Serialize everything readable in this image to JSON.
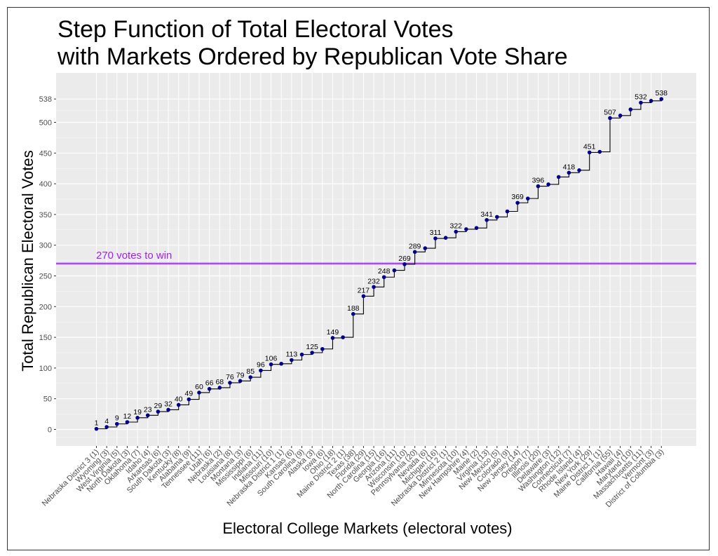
{
  "chart_data": {
    "type": "line",
    "subtype": "step",
    "title_lines": [
      "Step Function of Total Electoral Votes",
      "with Markets Ordered by Republican Vote Share"
    ],
    "xlabel": "Electoral College Markets (electoral votes)",
    "ylabel": "Total Republican Electoral Votes",
    "ylim": [
      -25,
      555
    ],
    "y_ticks": [
      0,
      50,
      100,
      150,
      200,
      250,
      300,
      350,
      400,
      450,
      500,
      538
    ],
    "grid": true,
    "panel_background": "#ebebeb",
    "line_color": "#000000",
    "point_color": "#00008b",
    "reference_line": {
      "y": 270,
      "label": "270 votes to win",
      "color": "#a020f0"
    },
    "categories": [
      "Nebraska District 3 (1)",
      "Wyoming (3)",
      "West Virginia (5)",
      "North Dakota (3)",
      "Oklahoma (7)",
      "Idaho (4)",
      "Arkansas (6)",
      "South Dakota (3)",
      "Kentucky (8)",
      "Alabama (9)",
      "Tennessee (11)",
      "Utah (6)",
      "Nebraska (2)",
      "Louisiana (8)",
      "Montana (3)",
      "Mississippi (6)",
      "Indiana (11)",
      "Missouri (10)",
      "Nebraska District 1 (1)",
      "Kansas (6)",
      "South Carolina (9)",
      "Alaska (3)",
      "Iowa (6)",
      "Ohio (18)",
      "Maine District 2 (1)",
      "Texas (38)",
      "Florida (29)",
      "North Carolina (15)",
      "Georgia (16)",
      "Arizona (11)",
      "Wisconsin (10)",
      "Pennsylvania (20)",
      "Nevada (6)",
      "Michigan (16)",
      "Nebraska District 2 (1)",
      "Minnesota (10)",
      "New Hampshire (4)",
      "Maine (2)",
      "Virginia (13)",
      "New Mexico (5)",
      "Colorado (9)",
      "New Jersey (14)",
      "Oregon (7)",
      "Illinois (20)",
      "Delaware (3)",
      "Washington (12)",
      "Connecticut (7)",
      "Rhode Island (4)",
      "New York (29)",
      "Maine District 1 (1)",
      "California (55)",
      "Hawaii (4)",
      "Maryland (10)",
      "Massachusetts (11)",
      "Vermont (3)",
      "District of Columbia (3)"
    ],
    "values": [
      1,
      4,
      9,
      12,
      19,
      23,
      29,
      32,
      40,
      49,
      60,
      66,
      68,
      76,
      79,
      85,
      96,
      106,
      107,
      113,
      122,
      125,
      131,
      149,
      150,
      188,
      217,
      232,
      248,
      259,
      269,
      289,
      295,
      311,
      312,
      322,
      326,
      328,
      341,
      346,
      355,
      369,
      376,
      396,
      399,
      411,
      418,
      422,
      451,
      452,
      507,
      511,
      521,
      532,
      535,
      538
    ],
    "data_labels": [
      {
        "index": 0,
        "text": "1"
      },
      {
        "index": 1,
        "text": "4"
      },
      {
        "index": 2,
        "text": "9"
      },
      {
        "index": 3,
        "text": "12"
      },
      {
        "index": 4,
        "text": "19"
      },
      {
        "index": 5,
        "text": "23"
      },
      {
        "index": 6,
        "text": "29"
      },
      {
        "index": 7,
        "text": "32"
      },
      {
        "index": 8,
        "text": "40"
      },
      {
        "index": 9,
        "text": "49"
      },
      {
        "index": 10,
        "text": "60"
      },
      {
        "index": 11,
        "text": "66"
      },
      {
        "index": 12,
        "text": "68"
      },
      {
        "index": 13,
        "text": "76"
      },
      {
        "index": 14,
        "text": "79"
      },
      {
        "index": 15,
        "text": "85"
      },
      {
        "index": 16,
        "text": "96"
      },
      {
        "index": 17,
        "text": "106"
      },
      {
        "index": 19,
        "text": "113"
      },
      {
        "index": 21,
        "text": "125"
      },
      {
        "index": 23,
        "text": "149"
      },
      {
        "index": 25,
        "text": "188"
      },
      {
        "index": 26,
        "text": "217"
      },
      {
        "index": 27,
        "text": "232"
      },
      {
        "index": 28,
        "text": "248"
      },
      {
        "index": 30,
        "text": "269"
      },
      {
        "index": 31,
        "text": "289"
      },
      {
        "index": 33,
        "text": "311"
      },
      {
        "index": 35,
        "text": "322"
      },
      {
        "index": 38,
        "text": "341"
      },
      {
        "index": 41,
        "text": "369"
      },
      {
        "index": 43,
        "text": "396"
      },
      {
        "index": 46,
        "text": "418"
      },
      {
        "index": 48,
        "text": "451"
      },
      {
        "index": 50,
        "text": "507"
      },
      {
        "index": 53,
        "text": "532"
      },
      {
        "index": 55,
        "text": "538"
      }
    ]
  }
}
